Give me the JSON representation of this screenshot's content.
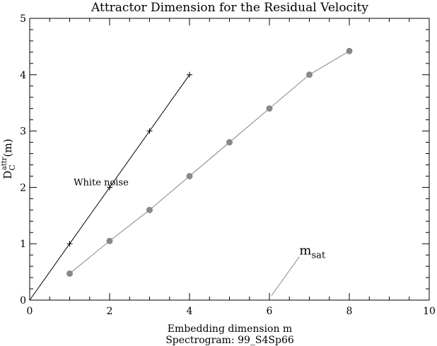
{
  "chart_data": {
    "type": "scatter",
    "title": "Attractor Dimension for the Residual Velocity",
    "xlabel": "Embedding dimension m",
    "xlabel2": "Spectrogram: 99_S4Sp66",
    "ylabel": {
      "base": "D",
      "sup": "attr",
      "sub": "C",
      "suffix": "(m)"
    },
    "xlim": [
      0,
      10
    ],
    "ylim": [
      0,
      5
    ],
    "xticks": [
      0,
      2,
      4,
      6,
      8,
      10
    ],
    "yticks": [
      0,
      1,
      2,
      3,
      4,
      5
    ],
    "grid": false,
    "series": [
      {
        "name": "White noise",
        "marker": "plus",
        "color": "#000000",
        "x": [
          0,
          1,
          2,
          3,
          4
        ],
        "y": [
          0,
          1,
          2,
          3,
          4
        ]
      },
      {
        "marker": "circle",
        "color": "#888888",
        "x": [
          1,
          2,
          3,
          4,
          5,
          6,
          7,
          8
        ],
        "y": [
          0.47,
          1.05,
          1.6,
          2.2,
          2.8,
          3.4,
          4.0,
          4.42
        ]
      }
    ],
    "annotations": [
      {
        "text": "White noise",
        "x": 1.1,
        "y": 2.1
      },
      {
        "text": "m",
        "sub": "sat",
        "x": 6.75,
        "y": 0.87,
        "line_from": [
          6.05,
          0.08
        ],
        "line_to": [
          6.75,
          0.77
        ]
      }
    ]
  }
}
